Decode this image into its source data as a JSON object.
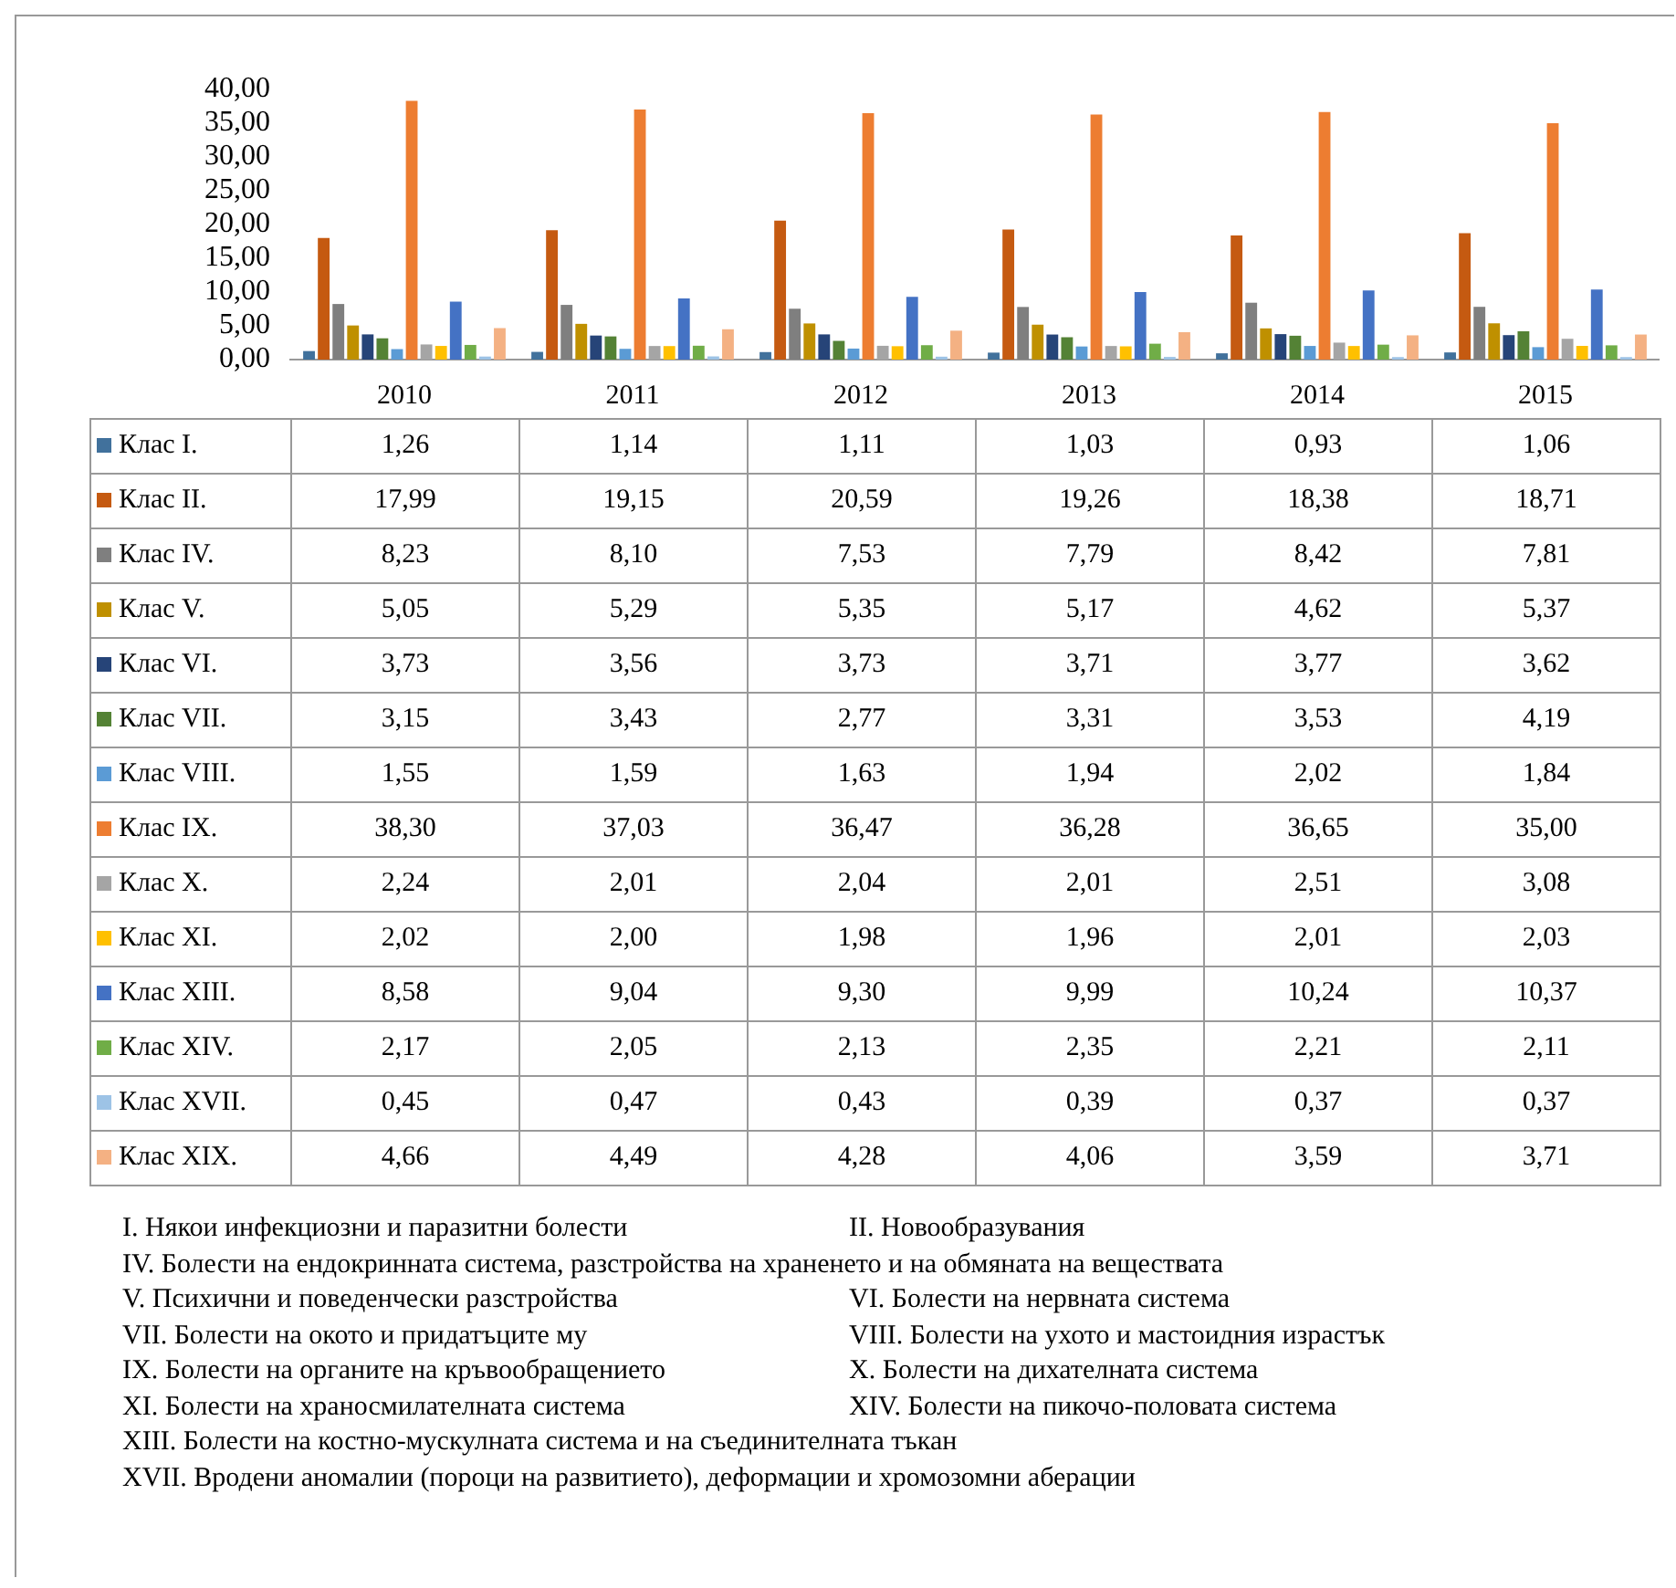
{
  "chart_data": {
    "type": "bar",
    "categories": [
      "2010",
      "2011",
      "2012",
      "2013",
      "2014",
      "2015"
    ],
    "ylim": [
      0,
      40
    ],
    "yticks": [
      {
        "value": 0,
        "label": "0,00"
      },
      {
        "value": 5,
        "label": "5,00"
      },
      {
        "value": 10,
        "label": "10,00"
      },
      {
        "value": 15,
        "label": "15,00"
      },
      {
        "value": 20,
        "label": "20,00"
      },
      {
        "value": 25,
        "label": "25,00"
      },
      {
        "value": 30,
        "label": "30,00"
      },
      {
        "value": 35,
        "label": "35,00"
      },
      {
        "value": 40,
        "label": "40,00"
      }
    ],
    "grid": false,
    "legend": "bottom",
    "series": [
      {
        "name": "Клас I.",
        "color": "#41719c",
        "values": [
          1.26,
          1.14,
          1.11,
          1.03,
          0.93,
          1.06
        ],
        "value_labels": [
          "1,26",
          "1,14",
          "1,11",
          "1,03",
          "0,93",
          "1,06"
        ]
      },
      {
        "name": "Клас II.",
        "color": "#c55a11",
        "values": [
          17.99,
          19.15,
          20.59,
          19.26,
          18.38,
          18.71
        ],
        "value_labels": [
          "17,99",
          "19,15",
          "20,59",
          "19,26",
          "18,38",
          "18,71"
        ]
      },
      {
        "name": "Клас IV.",
        "color": "#7f7f7f",
        "values": [
          8.23,
          8.1,
          7.53,
          7.79,
          8.42,
          7.81
        ],
        "value_labels": [
          "8,23",
          "8,10",
          "7,53",
          "7,79",
          "8,42",
          "7,81"
        ]
      },
      {
        "name": "Клас V.",
        "color": "#bf9000",
        "values": [
          5.05,
          5.29,
          5.35,
          5.17,
          4.62,
          5.37
        ],
        "value_labels": [
          "5,05",
          "5,29",
          "5,35",
          "5,17",
          "4,62",
          "5,37"
        ]
      },
      {
        "name": "Клас VI.",
        "color": "#264478",
        "values": [
          3.73,
          3.56,
          3.73,
          3.71,
          3.77,
          3.62
        ],
        "value_labels": [
          "3,73",
          "3,56",
          "3,73",
          "3,71",
          "3,77",
          "3,62"
        ]
      },
      {
        "name": "Клас VII.",
        "color": "#548235",
        "values": [
          3.15,
          3.43,
          2.77,
          3.31,
          3.53,
          4.19
        ],
        "value_labels": [
          "3,15",
          "3,43",
          "2,77",
          "3,31",
          "3,53",
          "4,19"
        ]
      },
      {
        "name": "Клас VIII.",
        "color": "#5b9bd5",
        "values": [
          1.55,
          1.59,
          1.63,
          1.94,
          2.02,
          1.84
        ],
        "value_labels": [
          "1,55",
          "1,59",
          "1,63",
          "1,94",
          "2,02",
          "1,84"
        ]
      },
      {
        "name": "Клас IX.",
        "color": "#ed7d31",
        "values": [
          38.3,
          37.03,
          36.47,
          36.28,
          36.65,
          35.0
        ],
        "value_labels": [
          "38,30",
          "37,03",
          "36,47",
          "36,28",
          "36,65",
          "35,00"
        ]
      },
      {
        "name": "Клас X.",
        "color": "#a5a5a5",
        "values": [
          2.24,
          2.01,
          2.04,
          2.01,
          2.51,
          3.08
        ],
        "value_labels": [
          "2,24",
          "2,01",
          "2,04",
          "2,01",
          "2,51",
          "3,08"
        ]
      },
      {
        "name": "Клас XI.",
        "color": "#ffc000",
        "values": [
          2.02,
          2.0,
          1.98,
          1.96,
          2.01,
          2.03
        ],
        "value_labels": [
          "2,02",
          "2,00",
          "1,98",
          "1,96",
          "2,01",
          "2,03"
        ]
      },
      {
        "name": "Клас XIII.",
        "color": "#4472c4",
        "values": [
          8.58,
          9.04,
          9.3,
          9.99,
          10.24,
          10.37
        ],
        "value_labels": [
          "8,58",
          "9,04",
          "9,30",
          "9,99",
          "10,24",
          "10,37"
        ]
      },
      {
        "name": "Клас XIV.",
        "color": "#70ad47",
        "values": [
          2.17,
          2.05,
          2.13,
          2.35,
          2.21,
          2.11
        ],
        "value_labels": [
          "2,17",
          "2,05",
          "2,13",
          "2,35",
          "2,21",
          "2,11"
        ]
      },
      {
        "name": "Клас XVII.",
        "color": "#9dc3e6",
        "values": [
          0.45,
          0.47,
          0.43,
          0.39,
          0.37,
          0.37
        ],
        "value_labels": [
          "0,45",
          "0,47",
          "0,43",
          "0,39",
          "0,37",
          "0,37"
        ]
      },
      {
        "name": "Клас XIX.",
        "color": "#f4b183",
        "values": [
          4.66,
          4.49,
          4.28,
          4.06,
          3.59,
          3.71
        ],
        "value_labels": [
          "4,66",
          "4,49",
          "4,28",
          "4,06",
          "3,59",
          "3,71"
        ]
      }
    ],
    "annotations": [
      "I. Някои инфекциозни и паразитни болести",
      "II. Новообразувания",
      "IV. Болести на ендокринната система, разстройства на храненето и на обмяната на веществата",
      "V. Психични и поведенчески разстройства",
      "VI. Болести на нервната система",
      "VII. Болести на окото и придатъците му",
      "VIII. Болести на ухото и мастоидния израстък",
      "IX. Болести на органите на кръвообращението",
      "X. Болести на дихателната система",
      "XI. Болести на храносмилателната система",
      "XIV. Болести на пикочо-половата система",
      "XIII. Болести на костно-мускулната система и на съединителната тъкан",
      "XVII. Вродени аномалии (пороци на развитието), деформации и хромозомни аберации"
    ]
  }
}
